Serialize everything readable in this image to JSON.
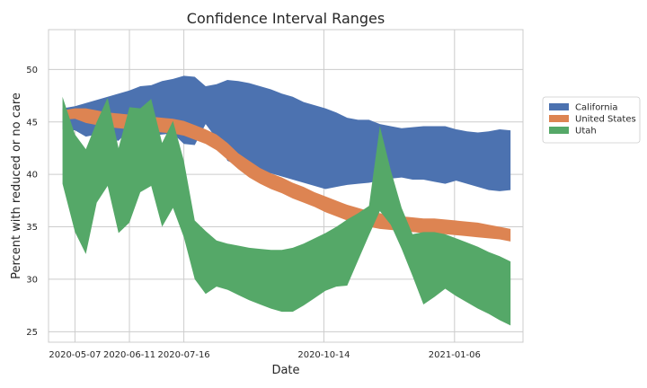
{
  "chart_data": {
    "type": "area",
    "title": "Confidence Interval Ranges",
    "xlabel": "Date",
    "ylabel": "Percent with reduced or no care",
    "xlim": [
      "2020-04-20",
      "2021-02-19"
    ],
    "ylim": [
      24.0,
      53.8
    ],
    "x": [
      "2020-04-29",
      "2020-05-07",
      "2020-05-14",
      "2020-05-21",
      "2020-05-28",
      "2020-06-04",
      "2020-06-11",
      "2020-06-18",
      "2020-06-25",
      "2020-07-02",
      "2020-07-09",
      "2020-07-16",
      "2020-07-23",
      "2020-07-30",
      "2020-08-06",
      "2020-08-13",
      "2020-08-20",
      "2020-08-27",
      "2020-09-03",
      "2020-09-10",
      "2020-09-17",
      "2020-09-24",
      "2020-10-01",
      "2020-10-08",
      "2020-10-15",
      "2020-10-22",
      "2020-10-29",
      "2020-11-05",
      "2020-11-12",
      "2020-11-19",
      "2020-11-26",
      "2020-12-03",
      "2020-12-10",
      "2020-12-17",
      "2020-12-24",
      "2020-12-31",
      "2021-01-07",
      "2021-01-14",
      "2021-01-21",
      "2021-01-28",
      "2021-02-04",
      "2021-02-11"
    ],
    "xticks": [
      "2020-05-07",
      "2020-06-11",
      "2020-07-16",
      "2020-10-14",
      "2021-01-06"
    ],
    "yticks": [
      25,
      30,
      35,
      40,
      45,
      50
    ],
    "grid": true,
    "legend_position": "right",
    "series": [
      {
        "name": "California",
        "color": "#4c72b0",
        "low": [
          44.3,
          44.2,
          43.6,
          43.8,
          43.4,
          43.2,
          44.3,
          43.7,
          43.7,
          43.8,
          43.9,
          42.9,
          42.8,
          44.8,
          43.4,
          41.3,
          40.8,
          40.2,
          40.0,
          40.1,
          39.8,
          39.5,
          39.2,
          38.9,
          38.6,
          38.8,
          39.0,
          39.1,
          39.2,
          39.4,
          39.6,
          39.7,
          39.5,
          39.5,
          39.3,
          39.1,
          39.4,
          39.1,
          38.8,
          38.5,
          38.4,
          38.5
        ],
        "high": [
          46.3,
          46.5,
          46.8,
          47.1,
          47.4,
          47.7,
          48.0,
          48.4,
          48.5,
          48.9,
          49.1,
          49.4,
          49.3,
          48.4,
          48.6,
          49.0,
          48.9,
          48.7,
          48.4,
          48.1,
          47.7,
          47.4,
          46.9,
          46.6,
          46.3,
          45.9,
          45.4,
          45.2,
          45.2,
          44.8,
          44.6,
          44.4,
          44.5,
          44.6,
          44.6,
          44.6,
          44.3,
          44.1,
          44.0,
          44.1,
          44.3,
          44.2
        ]
      },
      {
        "name": "United States",
        "color": "#dd8452",
        "low": [
          45.2,
          45.3,
          44.9,
          44.7,
          44.5,
          44.4,
          44.3,
          44.2,
          44.1,
          44.0,
          43.9,
          43.7,
          43.3,
          42.9,
          42.3,
          41.4,
          40.5,
          39.7,
          39.1,
          38.6,
          38.2,
          37.7,
          37.3,
          36.9,
          36.4,
          36.0,
          35.6,
          35.3,
          35.0,
          34.8,
          34.7,
          34.6,
          34.5,
          34.4,
          34.4,
          34.3,
          34.2,
          34.1,
          34.0,
          33.9,
          33.8,
          33.6
        ],
        "high": [
          46.1,
          46.3,
          46.3,
          46.1,
          45.9,
          45.8,
          45.7,
          45.6,
          45.5,
          45.4,
          45.3,
          45.1,
          44.7,
          44.3,
          43.8,
          43.0,
          42.0,
          41.3,
          40.6,
          40.1,
          39.7,
          39.2,
          38.8,
          38.3,
          37.9,
          37.5,
          37.1,
          36.8,
          36.5,
          36.3,
          36.1,
          36.0,
          35.9,
          35.8,
          35.8,
          35.7,
          35.6,
          35.5,
          35.4,
          35.2,
          35.0,
          34.8
        ]
      },
      {
        "name": "Utah",
        "color": "#55a868",
        "low": [
          39.1,
          34.5,
          32.4,
          37.3,
          38.9,
          34.4,
          35.4,
          38.3,
          38.9,
          35.0,
          36.8,
          34.0,
          30.0,
          28.6,
          29.3,
          29.0,
          28.5,
          28.0,
          27.6,
          27.2,
          26.9,
          26.9,
          27.5,
          28.2,
          28.9,
          29.3,
          29.4,
          31.8,
          34.2,
          36.5,
          35.2,
          32.9,
          30.3,
          27.6,
          28.3,
          29.1,
          28.4,
          27.8,
          27.2,
          26.7,
          26.1,
          25.6
        ],
        "high": [
          47.4,
          43.8,
          42.4,
          45.0,
          47.3,
          42.5,
          46.4,
          46.3,
          47.2,
          43.0,
          45.1,
          41.3,
          35.6,
          34.6,
          33.7,
          33.4,
          33.2,
          33.0,
          32.9,
          32.8,
          32.8,
          33.0,
          33.4,
          33.9,
          34.4,
          35.0,
          35.7,
          36.3,
          37.0,
          44.6,
          40.4,
          36.8,
          34.3,
          34.5,
          34.5,
          34.3,
          33.9,
          33.5,
          33.1,
          32.6,
          32.2,
          31.7
        ]
      }
    ]
  }
}
